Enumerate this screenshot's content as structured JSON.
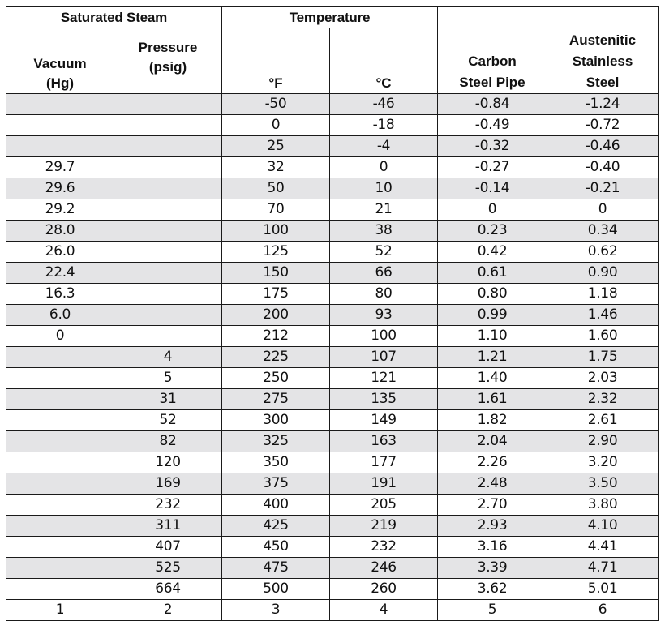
{
  "headers": {
    "saturated_steam": "Saturated Steam",
    "temperature": "Temperature",
    "vacuum_line1": "Vacuum",
    "vacuum_line2": "(Hg)",
    "pressure_line1": "Pressure",
    "pressure_line2": "(psig)",
    "deg_f": "°F",
    "deg_c": "°C",
    "carbon_line1": "Carbon",
    "carbon_line2": "Steel Pipe",
    "aus_line1": "Austenitic",
    "aus_line2": "Stainless",
    "aus_line3": "Steel"
  },
  "rows": [
    [
      "",
      "",
      "-50",
      "-46",
      "-0.84",
      "-1.24"
    ],
    [
      "",
      "",
      "0",
      "-18",
      "-0.49",
      "-0.72"
    ],
    [
      "",
      "",
      "25",
      "-4",
      "-0.32",
      "-0.46"
    ],
    [
      "29.7",
      "",
      "32",
      "0",
      "-0.27",
      "-0.40"
    ],
    [
      "29.6",
      "",
      "50",
      "10",
      "-0.14",
      "-0.21"
    ],
    [
      "29.2",
      "",
      "70",
      "21",
      "0",
      "0"
    ],
    [
      "28.0",
      "",
      "100",
      "38",
      "0.23",
      "0.34"
    ],
    [
      "26.0",
      "",
      "125",
      "52",
      "0.42",
      "0.62"
    ],
    [
      "22.4",
      "",
      "150",
      "66",
      "0.61",
      "0.90"
    ],
    [
      "16.3",
      "",
      "175",
      "80",
      "0.80",
      "1.18"
    ],
    [
      "6.0",
      "",
      "200",
      "93",
      "0.99",
      "1.46"
    ],
    [
      "0",
      "",
      "212",
      "100",
      "1.10",
      "1.60"
    ],
    [
      "",
      "4",
      "225",
      "107",
      "1.21",
      "1.75"
    ],
    [
      "",
      "5",
      "250",
      "121",
      "1.40",
      "2.03"
    ],
    [
      "",
      "31",
      "275",
      "135",
      "1.61",
      "2.32"
    ],
    [
      "",
      "52",
      "300",
      "149",
      "1.82",
      "2.61"
    ],
    [
      "",
      "82",
      "325",
      "163",
      "2.04",
      "2.90"
    ],
    [
      "",
      "120",
      "350",
      "177",
      "2.26",
      "3.20"
    ],
    [
      "",
      "169",
      "375",
      "191",
      "2.48",
      "3.50"
    ],
    [
      "",
      "232",
      "400",
      "205",
      "2.70",
      "3.80"
    ],
    [
      "",
      "311",
      "425",
      "219",
      "2.93",
      "4.10"
    ],
    [
      "",
      "407",
      "450",
      "232",
      "3.16",
      "4.41"
    ],
    [
      "",
      "525",
      "475",
      "246",
      "3.39",
      "4.71"
    ],
    [
      "",
      "664",
      "500",
      "260",
      "3.62",
      "5.01"
    ]
  ],
  "footer": [
    "1",
    "2",
    "3",
    "4",
    "5",
    "6"
  ],
  "colors": {
    "shade": "#e4e4e6",
    "border": "#1a1a1a"
  }
}
